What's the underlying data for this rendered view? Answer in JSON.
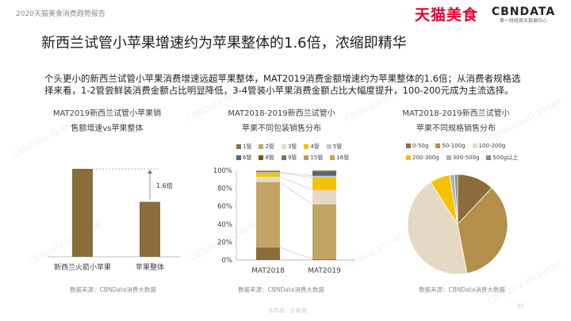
{
  "header": {
    "report_label": "2020天猫美食消费趋势报告",
    "brand_tmall": "天猫美食",
    "brand_cbn": "CBNDATA",
    "brand_cbn_sub": "第一财经商业数据中心"
  },
  "page_title": "新西兰试管小苹果增速约为苹果整体的1.6倍，浓缩即精华",
  "description": "个头更小的新西兰试管小苹果消费增速远超苹果整体，MAT2019消费金额增速约为苹果整体的1.6倍；从消费者规格选择来看，1-2管尝鲜装消费金额占比明显降低，3-4管装小苹果消费金额占比大幅度提升，100-200元成为主流选择。",
  "watermark": "CBNData ID:4988R",
  "colors": {
    "accent": "#8a6d3b",
    "brand_red": "#e6002d"
  },
  "chart_data": [
    {
      "type": "bar",
      "title_lines": [
        "MAT2019新西兰试管小苹果销",
        "售额增速vs苹果整体"
      ],
      "categories": [
        "新西兰火箭小苹果",
        "苹果整体"
      ],
      "values": [
        1.6,
        1.0
      ],
      "annotation": "1.6倍",
      "source": "数据来源：CBNData消费大数据"
    },
    {
      "type": "bar",
      "stacked": true,
      "title_lines": [
        "MAT2018-2019新西兰试管小",
        "苹果不同包装销售分布"
      ],
      "categories": [
        "MAT2018",
        "MAT2019"
      ],
      "yticks": [
        "0%",
        "20%",
        "40%",
        "60%",
        "80%",
        "100%"
      ],
      "ylim": [
        0,
        100
      ],
      "series": [
        {
          "name": "1管",
          "color": "#8a6d3b",
          "values": [
            14,
            1
          ]
        },
        {
          "name": "2管",
          "color": "#c4a465",
          "values": [
            73,
            61
          ]
        },
        {
          "name": "3管",
          "color": "#e6d9c4",
          "values": [
            6,
            16
          ]
        },
        {
          "name": "4管",
          "color": "#f5c200",
          "values": [
            4,
            14
          ]
        },
        {
          "name": "5管",
          "color": "#c7c7c7",
          "values": [
            1,
            2
          ]
        },
        {
          "name": "6管",
          "color": "#5a6470",
          "values": [
            1,
            5
          ]
        },
        {
          "name": "8管",
          "color": "#6f5627",
          "values": [
            0,
            0.5
          ]
        },
        {
          "name": "9管",
          "color": "#7a7650",
          "values": [
            0,
            0.3
          ]
        },
        {
          "name": "15管",
          "color": "#b89a5a",
          "values": [
            0.5,
            0.1
          ]
        },
        {
          "name": "16管",
          "color": "#c8a451",
          "values": [
            0.5,
            0.1
          ]
        }
      ],
      "source": "数据来源：CBNData消费大数据"
    },
    {
      "type": "pie",
      "title_lines": [
        "MAT2018-2019新西兰试管小",
        "苹果不同规格销售分布"
      ],
      "slices": [
        {
          "name": "0-50g",
          "color": "#8a6d3b",
          "value": 12
        },
        {
          "name": "50-100g",
          "color": "#b38f4a",
          "value": 35
        },
        {
          "name": "100-200g",
          "color": "#e6d9c4",
          "value": 44
        },
        {
          "name": "200-300g",
          "color": "#f5c200",
          "value": 6.5
        },
        {
          "name": "300-500g",
          "color": "#aab3c0",
          "value": 1.5
        },
        {
          "name": "500g以上",
          "color": "#8a8a8a",
          "value": 1
        }
      ],
      "source": "数据来源：CBNData消费大数据"
    }
  ],
  "footer": {
    "mark": "本数据 · 全网通",
    "page_number": "95"
  }
}
